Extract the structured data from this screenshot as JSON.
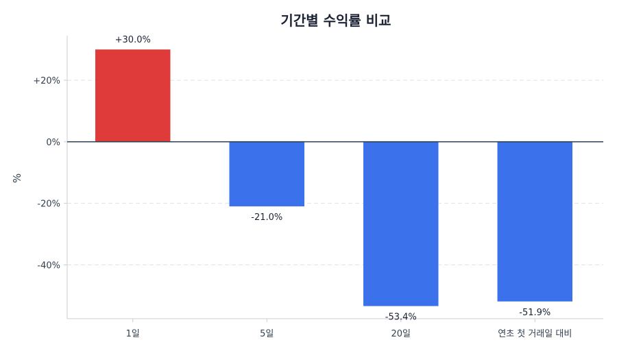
{
  "chart_data": {
    "type": "bar",
    "title": "기간별 수익률 비교",
    "ylabel": "%",
    "xlabel": "",
    "categories": [
      "1일",
      "5일",
      "20일",
      "연초 첫 거래일 대비"
    ],
    "values": [
      30.0,
      -21.0,
      -53.4,
      -51.9
    ],
    "data_labels": [
      "+30.0%",
      "-21.0%",
      "-53.4%",
      "-51.9%"
    ],
    "ylim": [
      -57.5,
      34.5
    ],
    "yticks": [
      20,
      0,
      -20,
      -40
    ],
    "ytick_labels": [
      "+20%",
      "0%",
      "-20%",
      "-40%"
    ],
    "grid": "horizontal dashed",
    "legend": "none",
    "colors": {
      "positive": "#e03b3b",
      "negative": "#3b72eb",
      "zero_line": "#2c3e50",
      "grid": "#dde3ea",
      "axis": "#c8cdd3"
    }
  }
}
